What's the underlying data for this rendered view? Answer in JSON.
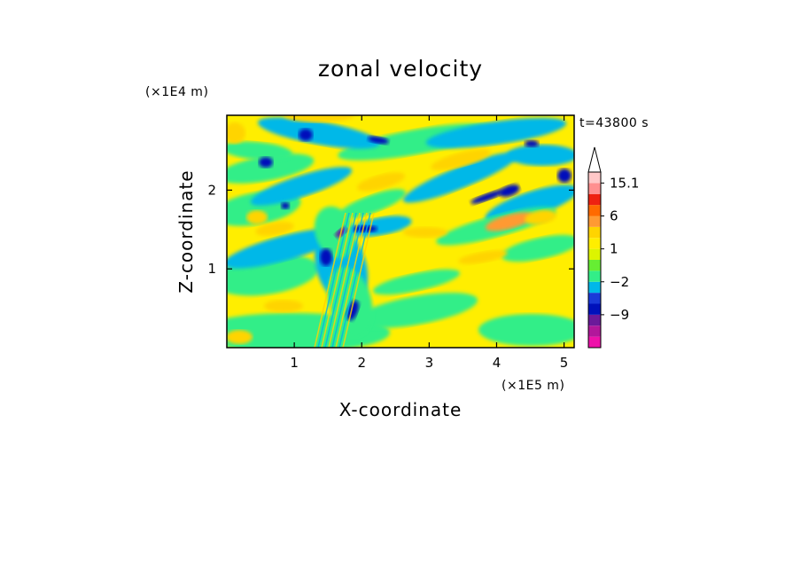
{
  "chart_data": {
    "type": "heatmap",
    "title": "zonal velocity",
    "xlabel": "X-coordinate",
    "ylabel": "Z-coordinate",
    "x_unit": "(×1E5 m)",
    "y_unit": "(×1E4 m)",
    "time_label": "t=43800 s",
    "xlim": [
      0,
      5.15
    ],
    "ylim": [
      0,
      2.95
    ],
    "x_ticks": [
      1,
      2,
      3,
      4,
      5
    ],
    "y_ticks": [
      1,
      2
    ],
    "colorbar": {
      "levels": [
        -15,
        -12,
        -9,
        -6,
        -3,
        -2,
        -1,
        0,
        1,
        2,
        3,
        6,
        9,
        12,
        15.1
      ],
      "colors": [
        "#ee11aa",
        "#b2179b",
        "#6b1a9a",
        "#0011bb",
        "#1a3ad8",
        "#00b8e8",
        "#33ee88",
        "#66ee33",
        "#ddf400",
        "#ffee00",
        "#ffd400",
        "#ff9a33",
        "#ff6a00",
        "#ee2211",
        "#ff9090",
        "#ffc8c8"
      ],
      "tick_labels": [
        {
          "value": -9,
          "text": "−9"
        },
        {
          "value": -2,
          "text": "−2"
        },
        {
          "value": 1,
          "text": "1"
        },
        {
          "value": 6,
          "text": "6"
        },
        {
          "value": 15.1,
          "text": "15.1"
        }
      ]
    }
  }
}
